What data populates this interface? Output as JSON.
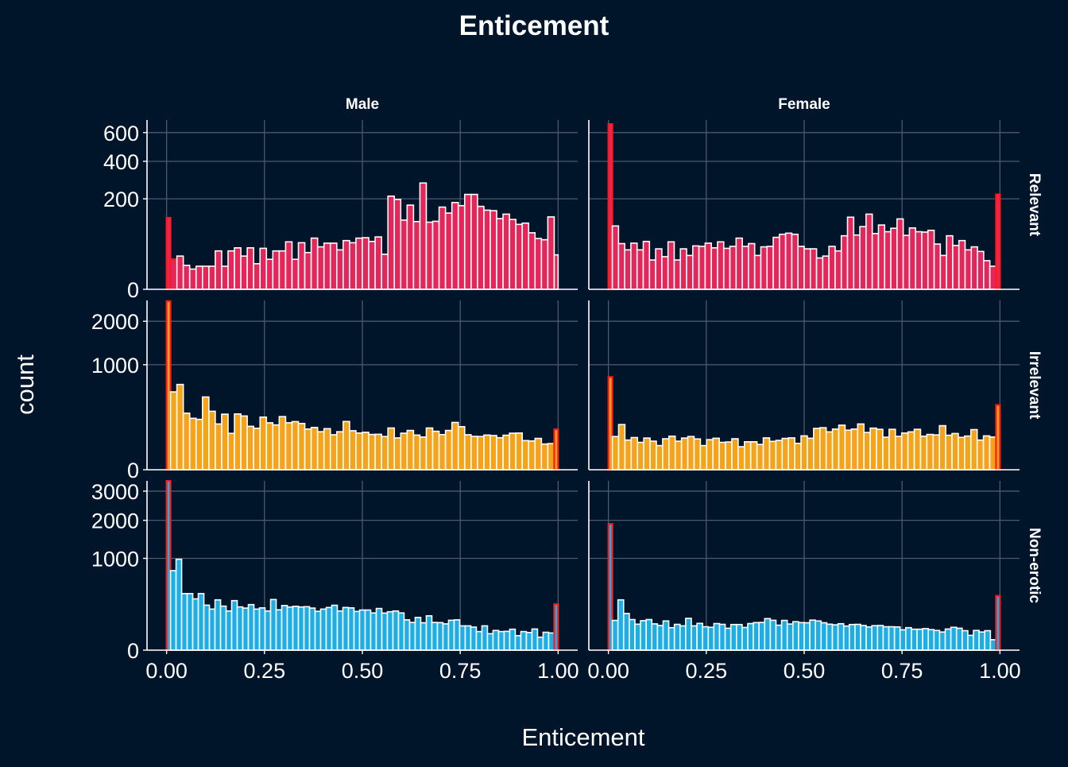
{
  "chart_data": {
    "type": "bar",
    "title": "Enticement",
    "xlabel": "Enticement",
    "ylabel": "count",
    "columns": [
      "Male",
      "Female"
    ],
    "rows": [
      "Relevant",
      "Irrelevant",
      "Non-erotic"
    ],
    "xlim": [
      -0.05,
      1.05
    ],
    "xticks": [
      0,
      0.25,
      0.5,
      0.75,
      1
    ],
    "xtick_labels": [
      "0.00",
      "0.25",
      "0.50",
      "0.75",
      "1.00"
    ],
    "y_transform": "sqrt",
    "bin_width": 0.02,
    "grid": true,
    "legend": "none",
    "colors": {
      "background": "#00142a",
      "grid": "#4a5a70",
      "bar_outline": "#ffffff",
      "edge_outline": "#ff1a1a",
      "Relevant": "#e5265a",
      "Irrelevant": "#f5a31a",
      "Non-erotic": "#1eaee6"
    },
    "panels": [
      {
        "column": "Male",
        "row": "Relevant",
        "ylim": [
          0,
          700
        ],
        "yticks": [
          0,
          200,
          400,
          600
        ],
        "ytick_labels": [
          "0",
          "200",
          "400",
          "600"
        ],
        "values": [
          125,
          22,
          27,
          14,
          10,
          13,
          13,
          13,
          36,
          13,
          36,
          42,
          27,
          42,
          16,
          41,
          22,
          36,
          36,
          55,
          22,
          53,
          33,
          64,
          44,
          52,
          52,
          38,
          58,
          53,
          64,
          65,
          56,
          67,
          30,
          212,
          197,
          117,
          173,
          112,
          276,
          110,
          113,
          165,
          142,
          184,
          171,
          220,
          220,
          168,
          153,
          151,
          122,
          138,
          119,
          103,
          107,
          78,
          63,
          60,
          128,
          29
        ],
        "edges": [
          0,
          1
        ]
      },
      {
        "column": "Female",
        "row": "Relevant",
        "ylim": [
          0,
          700
        ],
        "yticks": [
          0,
          200,
          400,
          600
        ],
        "ytick_labels": [
          "0",
          "200",
          "400",
          "600"
        ],
        "values": [
          666,
          98,
          51,
          38,
          52,
          38,
          56,
          21,
          40,
          26,
          55,
          21,
          40,
          28,
          46,
          45,
          52,
          42,
          55,
          41,
          45,
          64,
          45,
          51,
          28,
          44,
          45,
          66,
          74,
          77,
          74,
          45,
          40,
          40,
          24,
          27,
          45,
          36,
          70,
          127,
          72,
          96,
          138,
          76,
          101,
          81,
          91,
          121,
          71,
          92,
          81,
          80,
          85,
          50,
          28,
          70,
          47,
          58,
          38,
          44,
          35,
          20,
          13,
          220
        ],
        "edges": [
          0,
          63
        ]
      },
      {
        "column": "Male",
        "row": "Irrelevant",
        "ylim": [
          0,
          2600
        ],
        "yticks": [
          0,
          1000,
          2000
        ],
        "ytick_labels": [
          "0",
          "1000",
          "2000"
        ],
        "values": [
          2580,
          550,
          660,
          290,
          240,
          230,
          480,
          310,
          190,
          280,
          120,
          282,
          262,
          171,
          156,
          251,
          200,
          182,
          256,
          200,
          210,
          194,
          150,
          162,
          131,
          153,
          111,
          131,
          211,
          138,
          122,
          127,
          113,
          114,
          100,
          158,
          92,
          121,
          140,
          109,
          97,
          158,
          134,
          112,
          140,
          203,
          168,
          111,
          101,
          100,
          109,
          106,
          93,
          108,
          121,
          122,
          77,
          75,
          89,
          60,
          62,
          148
        ],
        "edges": [
          0,
          61
        ]
      },
      {
        "column": "Female",
        "row": "Irrelevant",
        "ylim": [
          0,
          2600
        ],
        "yticks": [
          0,
          1000,
          2000
        ],
        "ytick_labels": [
          "0",
          "1000",
          "2000"
        ],
        "values": [
          780,
          100,
          185,
          80,
          94,
          68,
          91,
          74,
          53,
          87,
          102,
          74,
          91,
          100,
          86,
          53,
          82,
          90,
          68,
          70,
          87,
          48,
          71,
          71,
          58,
          92,
          73,
          78,
          89,
          92,
          63,
          104,
          90,
          155,
          160,
          130,
          150,
          180,
          142,
          150,
          190,
          126,
          157,
          148,
          96,
          148,
          101,
          122,
          130,
          148,
          102,
          113,
          110,
          176,
          108,
          119,
          95,
          103,
          146,
          80,
          104,
          97,
          380
        ],
        "edges": [
          0,
          62
        ]
      },
      {
        "column": "Male",
        "row": "Non-erotic",
        "ylim": [
          0,
          3400
        ],
        "yticks": [
          0,
          1000,
          2000,
          3000
        ],
        "ytick_labels": [
          "0",
          "1000",
          "2000",
          "3000"
        ],
        "values": [
          3400,
          750,
          980,
          380,
          380,
          312,
          380,
          240,
          200,
          300,
          230,
          182,
          291,
          222,
          210,
          246,
          200,
          212,
          182,
          304,
          193,
          236,
          221,
          228,
          221,
          224,
          210,
          179,
          200,
          216,
          239,
          182,
          216,
          212,
          178,
          191,
          191,
          164,
          206,
          163,
          175,
          182,
          164,
          109,
          91,
          127,
          89,
          140,
          91,
          90,
          82,
          106,
          109,
          70,
          70,
          63,
          41,
          70,
          32,
          46,
          41,
          42,
          52,
          25,
          41,
          37,
          53,
          20,
          38,
          35,
          250
        ],
        "edges": [
          0,
          70
        ]
      },
      {
        "column": "Female",
        "row": "Non-erotic",
        "ylim": [
          0,
          3400
        ],
        "yticks": [
          0,
          1000,
          2000,
          3000
        ],
        "ytick_labels": [
          "0",
          "1000",
          "2000",
          "3000"
        ],
        "values": [
          1890,
          105,
          300,
          160,
          111,
          80,
          103,
          111,
          82,
          72,
          101,
          60,
          79,
          70,
          120,
          70,
          85,
          65,
          62,
          84,
          79,
          57,
          78,
          78,
          61,
          84,
          90,
          91,
          118,
          106,
          74,
          105,
          81,
          96,
          90,
          89,
          107,
          101,
          89,
          80,
          76,
          83,
          69,
          78,
          79,
          72,
          64,
          71,
          72,
          65,
          65,
          64,
          49,
          60,
          52,
          52,
          55,
          50,
          46,
          39,
          53,
          62,
          57,
          45,
          26,
          46,
          39,
          45,
          13,
          350
        ],
        "edges": [
          0,
          69
        ]
      }
    ]
  }
}
